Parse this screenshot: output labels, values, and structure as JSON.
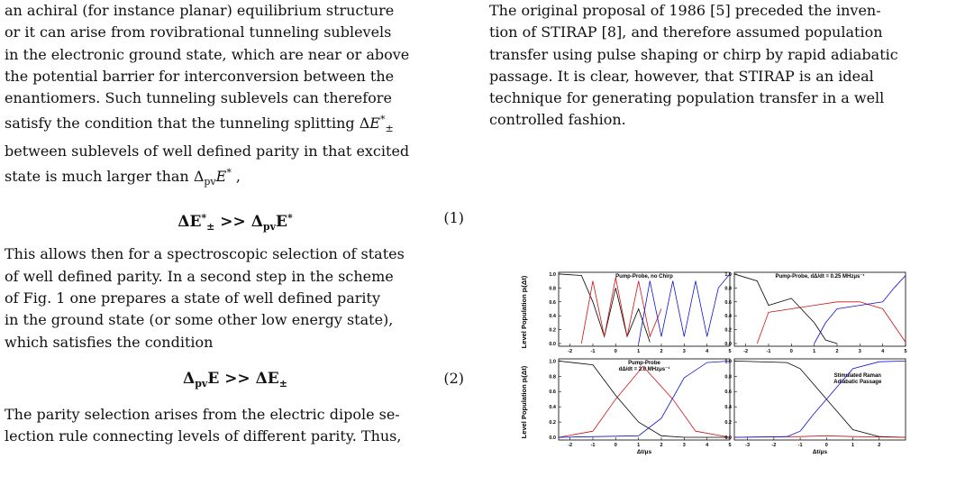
{
  "left": {
    "para1_lines": [
      "an achiral (for instance planar) equilibrium structure",
      "or it can arise from rovibrational tunneling sublevels",
      "in the electronic ground state, which are near or above",
      "the potential barrier for interconversion between the",
      "enantiomers. Such tunneling sublevels can therefore",
      "satisfy the condition that the tunneling splitting ΔE*±",
      "between sublevels of well defined parity in that excited",
      "state is much larger than Δ_pv E* ,"
    ],
    "eq1_number": "(1)",
    "para2_lines": [
      "This allows then for a spectroscopic selection of states",
      "of well defined parity. In a second step in the scheme",
      "of Fig. 1 one prepares a state of well defined parity",
      "in the ground state (or some other low energy state),",
      "which satisfies the condition"
    ],
    "eq2_number": "(2)",
    "para3_lines": [
      "The parity selection arises from the electric dipole se-",
      "lection rule connecting levels of different parity. Thus,"
    ]
  },
  "right": {
    "para_lines": [
      "The original proposal of 1986 [5] preceded the inven-",
      "tion of STIRAP [8], and therefore assumed population",
      "transfer using pulse shaping or chirp by rapid adiabatic",
      "passage. It is clear, however, that STIRAP is an ideal",
      "technique for generating population transfer in a well",
      "controlled fashion."
    ]
  },
  "figure": {
    "ylabel": "Level Population pᵢ(Δt)",
    "xlabel": "Δt/μs",
    "panels": [
      {
        "title_lines": [
          "Pump-Probe, no Chirp"
        ]
      },
      {
        "title_lines": [
          "Pump-Probe, dΔ/dt = 0.25 MHzμs⁻¹"
        ]
      },
      {
        "title_lines": [
          "Pump-Probe",
          "dΔ/dt = 2.0 MHzμs⁻¹"
        ]
      },
      {
        "title_lines": [
          "Stimulated Raman",
          "Adiabatic Passage"
        ]
      }
    ],
    "yticks": [
      "0.0",
      "0.2",
      "0.4",
      "0.6",
      "0.8",
      "1.0"
    ],
    "xticks_a": [
      "-2",
      "-1",
      "0",
      "1",
      "2",
      "3",
      "4",
      "5"
    ],
    "xticks_b": [
      "-3",
      "-2",
      "-1",
      "0",
      "1",
      "2"
    ],
    "colors": {
      "black": "#000000",
      "red": "#d01010",
      "blue": "#1010d0"
    }
  },
  "chart_data": [
    {
      "type": "line",
      "title": "Pump-Probe, no Chirp",
      "xlabel": "",
      "ylabel": "Level Population pᵢ(Δt)",
      "xlim": [
        -2.5,
        5
      ],
      "ylim": [
        0,
        1
      ],
      "series": [
        {
          "color": "black",
          "x": [
            -2.5,
            -1.5,
            -1,
            -0.5,
            0,
            0.5,
            1,
            1.5
          ],
          "y": [
            1,
            0.98,
            0.6,
            0.1,
            0.8,
            0.1,
            0.5,
            0.02
          ]
        },
        {
          "color": "red",
          "x": [
            -1.5,
            -1,
            -0.5,
            0,
            0.5,
            1,
            1.5,
            2
          ],
          "y": [
            0,
            0.9,
            0.1,
            0.95,
            0.1,
            0.9,
            0.1,
            0.5
          ]
        },
        {
          "color": "blue",
          "x": [
            1,
            1.5,
            2,
            2.5,
            3,
            3.5,
            4,
            4.5,
            5
          ],
          "y": [
            0,
            0.9,
            0.1,
            0.9,
            0.1,
            0.9,
            0.1,
            0.8,
            1
          ]
        }
      ]
    },
    {
      "type": "line",
      "title": "Pump-Probe, dΔ/dt = 0.25 MHzμs⁻¹",
      "xlabel": "",
      "ylabel": "",
      "xlim": [
        -2.5,
        5
      ],
      "ylim": [
        0,
        1
      ],
      "series": [
        {
          "color": "black",
          "x": [
            -2.5,
            -1.5,
            -1,
            0,
            1,
            1.5,
            2
          ],
          "y": [
            1,
            0.9,
            0.55,
            0.65,
            0.3,
            0.05,
            0
          ]
        },
        {
          "color": "red",
          "x": [
            -1.5,
            -1,
            0,
            1,
            2,
            3,
            4,
            5
          ],
          "y": [
            0,
            0.45,
            0.5,
            0.55,
            0.6,
            0.6,
            0.5,
            0.02
          ]
        },
        {
          "color": "blue",
          "x": [
            1,
            1.5,
            2,
            3,
            4,
            4.5,
            5
          ],
          "y": [
            0,
            0.3,
            0.5,
            0.55,
            0.6,
            0.8,
            0.98
          ]
        }
      ]
    },
    {
      "type": "line",
      "title": "Pump-Probe dΔ/dt = 2.0 MHzμs⁻¹",
      "xlabel": "Δt/μs",
      "ylabel": "Level Population pᵢ(Δt)",
      "xlim": [
        -2.5,
        5
      ],
      "ylim": [
        0,
        1
      ],
      "series": [
        {
          "color": "black",
          "x": [
            -2.5,
            -1,
            0,
            1,
            2,
            3,
            5
          ],
          "y": [
            1,
            0.95,
            0.55,
            0.2,
            0.02,
            0,
            0
          ]
        },
        {
          "color": "red",
          "x": [
            -2.5,
            -1,
            0,
            1.2,
            2.5,
            3.5,
            5
          ],
          "y": [
            0,
            0.08,
            0.5,
            0.93,
            0.5,
            0.08,
            0
          ]
        },
        {
          "color": "blue",
          "x": [
            -2.5,
            1,
            2,
            3,
            4,
            5
          ],
          "y": [
            0,
            0.02,
            0.25,
            0.78,
            0.98,
            1
          ]
        }
      ]
    },
    {
      "type": "line",
      "title": "Stimulated Raman Adiabatic Passage",
      "xlabel": "Δt/μs",
      "ylabel": "",
      "xlim": [
        -3.5,
        3
      ],
      "ylim": [
        0,
        1
      ],
      "series": [
        {
          "color": "black",
          "x": [
            -3.5,
            -1.5,
            -1,
            -0.5,
            0,
            0.5,
            1,
            2,
            3
          ],
          "y": [
            1,
            0.98,
            0.9,
            0.7,
            0.5,
            0.3,
            0.1,
            0.01,
            0
          ]
        },
        {
          "color": "red",
          "x": [
            -3.5,
            -1,
            0,
            1,
            3
          ],
          "y": [
            0,
            0.01,
            0.02,
            0.01,
            0
          ]
        },
        {
          "color": "blue",
          "x": [
            -3.5,
            -1.5,
            -1,
            -0.5,
            0,
            0.5,
            1,
            2,
            3
          ],
          "y": [
            0,
            0.01,
            0.08,
            0.3,
            0.5,
            0.7,
            0.9,
            0.99,
            1
          ]
        }
      ]
    }
  ]
}
